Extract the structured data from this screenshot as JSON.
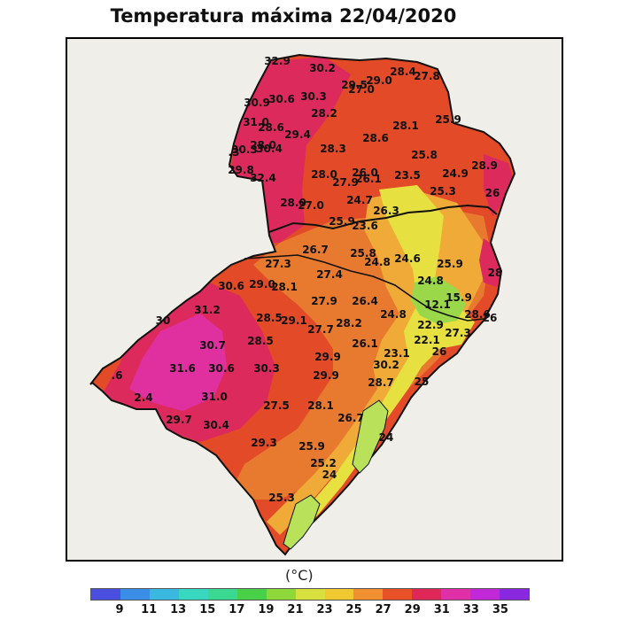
{
  "title": "Temperatura máxima 22/04/2020",
  "unit": "(°C)",
  "colorbar": {
    "ticks": [
      "9",
      "11",
      "13",
      "15",
      "17",
      "19",
      "21",
      "23",
      "25",
      "27",
      "29",
      "31",
      "33",
      "35"
    ],
    "colors": [
      "#4a4fe0",
      "#3a8ee8",
      "#3ab8e0",
      "#38d8c0",
      "#3ad890",
      "#48d048",
      "#8ed83a",
      "#d8e040",
      "#f0c830",
      "#f09030",
      "#e85028",
      "#e02858",
      "#e030a8",
      "#c028d8",
      "#8a28e0"
    ]
  },
  "map": {
    "background": "#efeee8",
    "region_colors": {
      "t21_23": "#9ad84a",
      "t23_25": "#e6e040",
      "t25_27": "#efaa38",
      "t27_29": "#e87a30",
      "t29_31": "#e24a28",
      "t31_33": "#dc2a5c",
      "t33_35": "#e030a0"
    },
    "labels": [
      {
        "text": "32.9"
      },
      {
        "text": "30.2"
      },
      {
        "text": "29.5"
      },
      {
        "text": "29.0"
      },
      {
        "text": "28.4"
      },
      {
        "text": "27.8"
      },
      {
        "text": "27.0"
      },
      {
        "text": "30.9"
      },
      {
        "text": "30.6"
      },
      {
        "text": "30.3"
      },
      {
        "text": "28.2"
      },
      {
        "text": "25.9"
      },
      {
        "text": "31.0"
      },
      {
        "text": "28.6"
      },
      {
        "text": "29.4"
      },
      {
        "text": "28.1"
      },
      {
        "text": "28.6"
      },
      {
        "text": "30.3"
      },
      {
        "text": "28.0"
      },
      {
        "text": "30.4"
      },
      {
        "text": "28.3"
      },
      {
        "text": "25.8"
      },
      {
        "text": "28.9"
      },
      {
        "text": "29.8"
      },
      {
        "text": "32.4"
      },
      {
        "text": "28.0"
      },
      {
        "text": "26.0"
      },
      {
        "text": "23.5"
      },
      {
        "text": "24.9"
      },
      {
        "text": "27.9"
      },
      {
        "text": "26.1"
      },
      {
        "text": "25.3"
      },
      {
        "text": "26"
      },
      {
        "text": "28.0"
      },
      {
        "text": "27.0"
      },
      {
        "text": "24.7"
      },
      {
        "text": "26.3"
      },
      {
        "text": "25.9"
      },
      {
        "text": "23.6"
      },
      {
        "text": "26.7"
      },
      {
        "text": "25.8"
      },
      {
        "text": "24.8"
      },
      {
        "text": "24.6"
      },
      {
        "text": "25.9"
      },
      {
        "text": "27.3"
      },
      {
        "text": "27.4"
      },
      {
        "text": "28"
      },
      {
        "text": "30.6"
      },
      {
        "text": "29.0"
      },
      {
        "text": "28.1"
      },
      {
        "text": "24.8"
      },
      {
        "text": "31.2"
      },
      {
        "text": "27.9"
      },
      {
        "text": "26.4"
      },
      {
        "text": "15.9"
      },
      {
        "text": "12.1"
      },
      {
        "text": "28.6"
      },
      {
        "text": "28.5"
      },
      {
        "text": "29.1"
      },
      {
        "text": "28.2"
      },
      {
        "text": "24.8"
      },
      {
        "text": "22.9"
      },
      {
        "text": "26"
      },
      {
        "text": "27.7"
      },
      {
        "text": "27.3"
      },
      {
        "text": "30.7"
      },
      {
        "text": "28.5"
      },
      {
        "text": "26.1"
      },
      {
        "text": "22.1"
      },
      {
        "text": "29.9"
      },
      {
        "text": "23.1"
      },
      {
        "text": "26"
      },
      {
        "text": "31.6"
      },
      {
        "text": "30.6"
      },
      {
        "text": "30.3"
      },
      {
        "text": "30.2"
      },
      {
        "text": "29.9"
      },
      {
        "text": "25"
      },
      {
        "text": "28.7"
      },
      {
        "text": "2.4"
      },
      {
        "text": "31.0"
      },
      {
        "text": "27.5"
      },
      {
        "text": "28.1"
      },
      {
        "text": "26.7"
      },
      {
        "text": "29.7"
      },
      {
        "text": "30.4"
      },
      {
        "text": "24"
      },
      {
        "text": "29.3"
      },
      {
        "text": "25.9"
      },
      {
        "text": "25.2"
      },
      {
        "text": "24"
      },
      {
        "text": "25.3"
      },
      {
        "text": "30"
      },
      {
        "text": ".6"
      },
      {
        "text": ".3"
      }
    ]
  }
}
